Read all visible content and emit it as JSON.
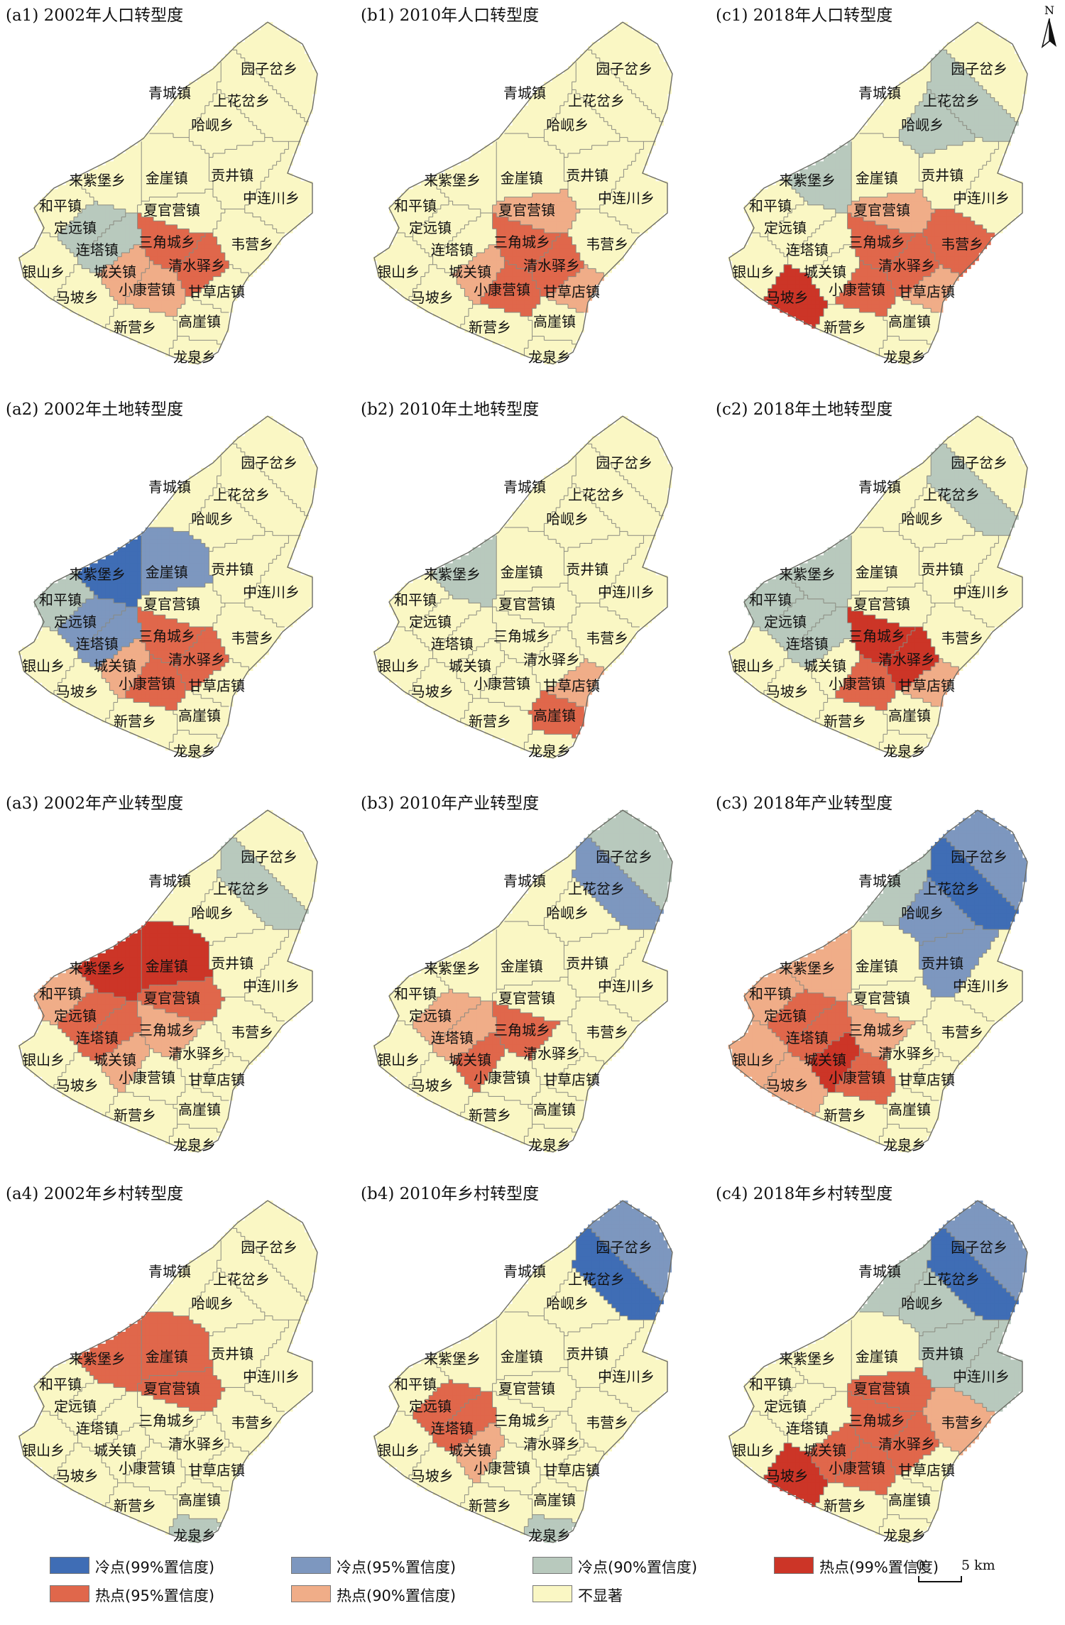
{
  "north_label": "N",
  "colors": {
    "cold99": "#3f6db5",
    "cold95": "#7d97bf",
    "cold90": "#b8c9bd",
    "hot99": "#cc3527",
    "hot95": "#e0674b",
    "hot90": "#f0ad88",
    "ns": "#faf7c4",
    "border": "#8a8a80"
  },
  "legend": [
    {
      "key": "cold99",
      "label": "冷点(99%置信度)"
    },
    {
      "key": "cold95",
      "label": "冷点(95%置信度)"
    },
    {
      "key": "cold90",
      "label": "冷点(90%置信度)"
    },
    {
      "key": "hot99",
      "label": "热点(99%置信度)"
    },
    {
      "key": "hot95",
      "label": "热点(95%置信度)"
    },
    {
      "key": "hot90",
      "label": "热点(90%置信度)"
    },
    {
      "key": "ns",
      "label": "不显著"
    }
  ],
  "scalebar": {
    "zero": "0",
    "distance": "5 km"
  },
  "towns": [
    "青城镇",
    "园子岔乡",
    "上花岔乡",
    "哈岘乡",
    "来紫堡乡",
    "金崖镇",
    "贡井镇",
    "中连川乡",
    "和平镇",
    "定远镇",
    "夏官营镇",
    "连塔镇",
    "三角城乡",
    "韦营乡",
    "城关镇",
    "清水驿乡",
    "银山乡",
    "马坡乡",
    "小康营镇",
    "甘草店镇",
    "新营乡",
    "高崖镇",
    "龙泉乡"
  ],
  "panels": [
    {
      "title": "(a1) 2002年人口转型度",
      "classes": {
        "三角城乡": "hot95",
        "清水驿乡": "hot95",
        "城关镇": "hot90",
        "小康营镇": "hot90",
        "连塔镇": "cold90",
        "定远镇": "cold90"
      }
    },
    {
      "title": "(b1) 2010年人口转型度",
      "classes": {
        "三角城乡": "hot95",
        "清水驿乡": "hot95",
        "夏官营镇": "hot90",
        "城关镇": "hot90",
        "小康营镇": "hot95",
        "甘草店镇": "hot90"
      }
    },
    {
      "title": "(c1) 2018年人口转型度",
      "classes": {
        "马坡乡": "hot99",
        "三角城乡": "hot95",
        "清水驿乡": "hot95",
        "韦营乡": "hot95",
        "小康营镇": "hot95",
        "甘草店镇": "hot90",
        "夏官营镇": "hot90",
        "哈岘乡": "cold90",
        "上花岔乡": "cold90",
        "来紫堡乡": "cold90"
      }
    },
    {
      "title": "(a2) 2002年土地转型度",
      "classes": {
        "来紫堡乡": "cold99",
        "金崖镇": "cold95",
        "定远镇": "cold95",
        "连塔镇": "cold95",
        "和平镇": "cold90",
        "三角城乡": "hot95",
        "清水驿乡": "hot95",
        "小康营镇": "hot95",
        "城关镇": "hot90"
      }
    },
    {
      "title": "(b2) 2010年土地转型度",
      "classes": {
        "来紫堡乡": "cold90",
        "高崖镇": "hot95",
        "甘草店镇": "hot90"
      }
    },
    {
      "title": "(c2) 2018年土地转型度",
      "classes": {
        "三角城乡": "hot99",
        "清水驿乡": "hot99",
        "小康营镇": "hot95",
        "甘草店镇": "hot90",
        "上花岔乡": "cold90",
        "来紫堡乡": "cold90",
        "和平镇": "cold90",
        "定远镇": "cold90",
        "连塔镇": "cold90"
      }
    },
    {
      "title": "(a3) 2002年产业转型度",
      "classes": {
        "来紫堡乡": "hot99",
        "金崖镇": "hot99",
        "夏官营镇": "hot95",
        "定远镇": "hot95",
        "连塔镇": "hot95",
        "和平镇": "hot90",
        "城关镇": "hot90",
        "三角城乡": "hot90",
        "上花岔乡": "cold90"
      }
    },
    {
      "title": "(b3) 2010年产业转型度",
      "classes": {
        "三角城乡": "hot95",
        "城关镇": "hot95",
        "连塔镇": "hot90",
        "定远镇": "hot90",
        "园子岔乡": "cold90",
        "上花岔乡": "cold95"
      }
    },
    {
      "title": "(c3) 2018年产业转型度",
      "classes": {
        "城关镇": "hot99",
        "连塔镇": "hot95",
        "定远镇": "hot95",
        "小康营镇": "hot95",
        "来紫堡乡": "hot90",
        "和平镇": "hot90",
        "马坡乡": "hot90",
        "银山乡": "hot90",
        "三角城乡": "hot90",
        "上花岔乡": "cold99",
        "园子岔乡": "cold95",
        "青城镇": "cold90",
        "哈岘乡": "cold95",
        "贡井镇": "cold95"
      }
    },
    {
      "title": "(a4) 2002年乡村转型度",
      "classes": {
        "来紫堡乡": "hot95",
        "金崖镇": "hot95",
        "夏官营镇": "hot95",
        "龙泉乡": "cold90"
      }
    },
    {
      "title": "(b4) 2010年乡村转型度",
      "classes": {
        "园子岔乡": "cold95",
        "上花岔乡": "cold99",
        "连塔镇": "hot95",
        "定远镇": "hot95",
        "城关镇": "hot90",
        "龙泉乡": "cold90"
      }
    },
    {
      "title": "(c4) 2018年乡村转型度",
      "classes": {
        "上花岔乡": "cold99",
        "园子岔乡": "cold95",
        "青城镇": "cold90",
        "哈岘乡": "cold90",
        "贡井镇": "cold90",
        "中连川乡": "cold90",
        "马坡乡": "hot99",
        "夏官营镇": "hot95",
        "三角城乡": "hot95",
        "清水驿乡": "hot95",
        "城关镇": "hot95",
        "小康营镇": "hot95",
        "韦营乡": "hot90"
      }
    }
  ]
}
